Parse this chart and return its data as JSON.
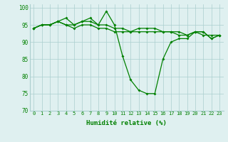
{
  "x": [
    0,
    1,
    2,
    3,
    4,
    5,
    6,
    7,
    8,
    9,
    10,
    11,
    12,
    13,
    14,
    15,
    16,
    17,
    18,
    19,
    20,
    21,
    22,
    23
  ],
  "y_main": [
    94,
    95,
    95,
    96,
    97,
    95,
    96,
    97,
    95,
    99,
    95,
    86,
    79,
    76,
    75,
    75,
    85,
    90,
    91,
    91,
    93,
    93,
    91,
    92
  ],
  "y_upper": [
    94,
    95,
    95,
    96,
    95,
    95,
    96,
    96,
    95,
    95,
    94,
    94,
    93,
    94,
    94,
    94,
    93,
    93,
    93,
    92,
    93,
    93,
    91,
    92
  ],
  "y_lower": [
    94,
    95,
    95,
    96,
    95,
    94,
    95,
    95,
    94,
    94,
    93,
    93,
    93,
    93,
    93,
    93,
    93,
    93,
    92,
    92,
    93,
    92,
    92,
    92
  ],
  "line_color": "#008000",
  "bg_color": "#dff0f0",
  "grid_color": "#aacece",
  "xlabel": "Humidité relative (%)",
  "ylim": [
    70,
    101
  ],
  "yticks": [
    70,
    75,
    80,
    85,
    90,
    95,
    100
  ],
  "xlim": [
    -0.5,
    23.5
  ]
}
